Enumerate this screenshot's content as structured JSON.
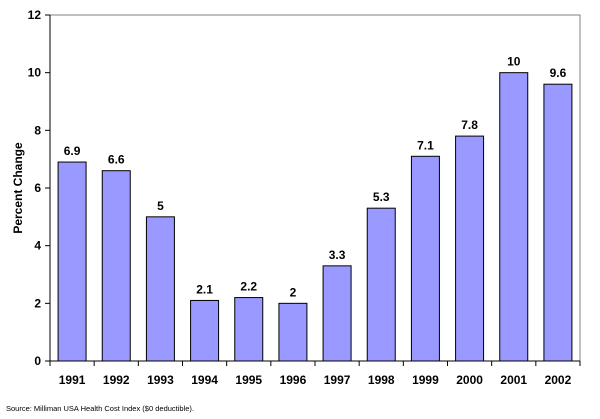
{
  "chart_data": {
    "type": "bar",
    "categories": [
      "1991",
      "1992",
      "1993",
      "1994",
      "1995",
      "1996",
      "1997",
      "1998",
      "1999",
      "2000",
      "2001",
      "2002"
    ],
    "values": [
      6.9,
      6.6,
      5,
      2.1,
      2.2,
      2,
      3.3,
      5.3,
      7.1,
      7.8,
      10,
      9.6
    ],
    "data_labels": [
      "6.9",
      "6.6",
      "5",
      "2.1",
      "2.2",
      "2",
      "3.3",
      "5.3",
      "7.1",
      "7.8",
      "10",
      "9.6"
    ],
    "xlabel": "",
    "ylabel": "Percent Change",
    "ylim": [
      0,
      12
    ],
    "yticks": [
      0,
      2,
      4,
      6,
      8,
      10,
      12
    ],
    "grid": false,
    "legend": "none",
    "bar_color": "#9999FF",
    "bar_edge_color": "#000000"
  },
  "source_note": "Source:  Milliman USA Health Cost Index ($0 deductible)."
}
